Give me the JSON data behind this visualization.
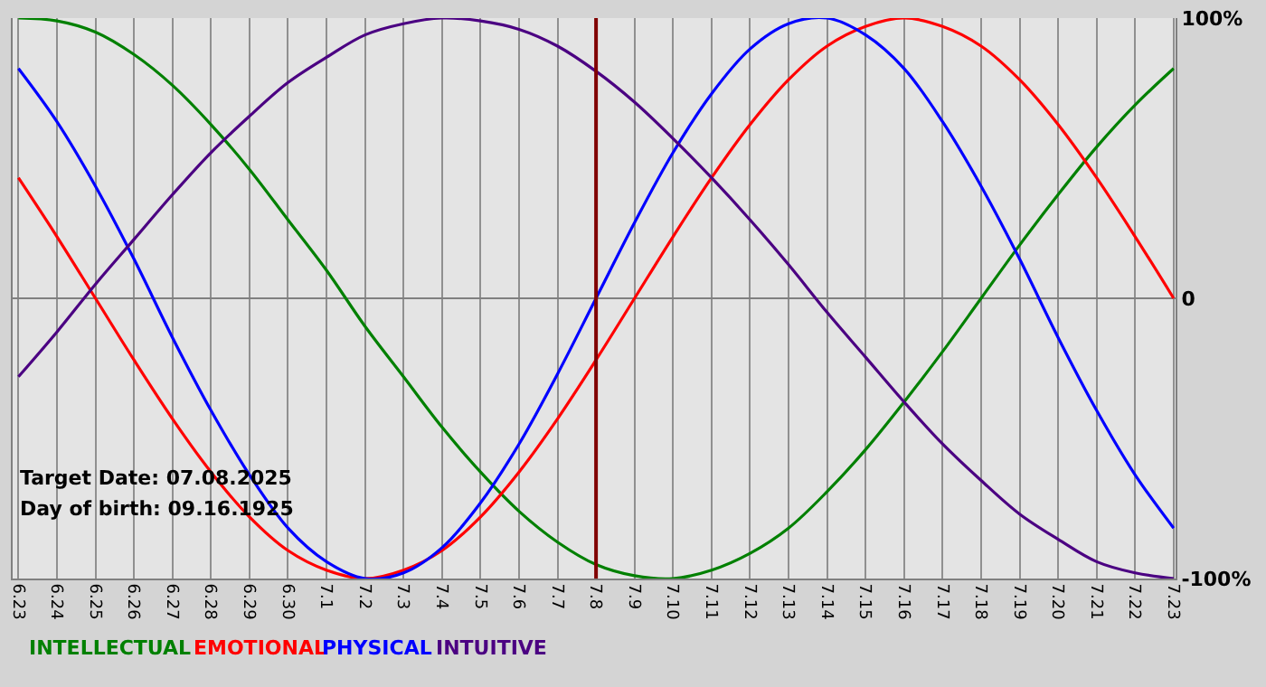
{
  "chart_data": {
    "type": "line",
    "categories": [
      "6.23",
      "6.24",
      "6.25",
      "6.26",
      "6.27",
      "6.28",
      "6.29",
      "6.30",
      "7.1",
      "7.2",
      "7.3",
      "7.4",
      "7.5",
      "7.6",
      "7.7",
      "7.8",
      "7.9",
      "7.10",
      "7.11",
      "7.12",
      "7.13",
      "7.14",
      "7.15",
      "7.16",
      "7.17",
      "7.18",
      "7.19",
      "7.20",
      "7.21",
      "7.22",
      "7.23"
    ],
    "series": [
      {
        "name": "INTELLECTUAL",
        "color": "#008000",
        "values": [
          100,
          99,
          95,
          87,
          76,
          62,
          46,
          28,
          10,
          -10,
          -28,
          -46,
          -62,
          -76,
          -87,
          -95,
          -99,
          -100,
          -97,
          -91,
          -82,
          -69,
          -54,
          -37,
          -19,
          0,
          19,
          37,
          54,
          69,
          82
        ]
      },
      {
        "name": "EMOTIONAL",
        "color": "#ff0000",
        "values": [
          43,
          22,
          0,
          -22,
          -43,
          -62,
          -78,
          -90,
          -97,
          -100,
          -97,
          -90,
          -78,
          -62,
          -43,
          -22,
          0,
          22,
          43,
          62,
          78,
          90,
          97,
          100,
          97,
          90,
          78,
          62,
          43,
          22,
          0
        ]
      },
      {
        "name": "PHYSICAL",
        "color": "#0000ff",
        "values": [
          82,
          63,
          40,
          14,
          -14,
          -40,
          -63,
          -82,
          -94,
          -100,
          -98,
          -89,
          -73,
          -52,
          -27,
          0,
          27,
          52,
          73,
          89,
          98,
          100,
          94,
          82,
          63,
          40,
          14,
          -14,
          -40,
          -63,
          -82
        ]
      },
      {
        "name": "INTUITIVE",
        "color": "#4b0082",
        "values": [
          -28,
          -12,
          5,
          21,
          37,
          52,
          65,
          77,
          86,
          94,
          98,
          100,
          99,
          96,
          90,
          81,
          70,
          57,
          43,
          28,
          12,
          -5,
          -21,
          -37,
          -52,
          -65,
          -77,
          -86,
          -94,
          -98,
          -100
        ]
      }
    ],
    "ylim": [
      -100,
      100
    ],
    "yticks": [
      {
        "value": 100,
        "label": "100%"
      },
      0,
      {
        "value": -100,
        "label": "-100%"
      }
    ],
    "grid": true,
    "marker": "none",
    "line_style": "solid",
    "ref_lines": [
      {
        "axis": "x",
        "value": "7.8",
        "color": "#800000"
      }
    ],
    "annotations": [
      "Target Date: 07.08.2025",
      "Day of birth: 09.16.1925"
    ]
  }
}
